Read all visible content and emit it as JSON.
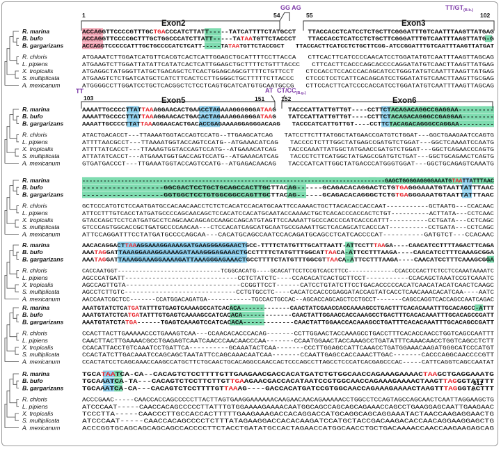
{
  "colors": {
    "green_highlight": "#7fdcb0",
    "blue_highlight": "#8fd0ee",
    "pink_highlight": "#f3a6b5",
    "stop_codon_red": "#e8262d",
    "splice_purple": "#7d3aa8",
    "text_black": "#111111"
  },
  "species": {
    "marina": "R. marina",
    "bufo": "B. bufo",
    "gargarizans": "B. gargarizans",
    "chloris": "R. chloris",
    "pipiens": "L. pipiens",
    "tropicalis": "X. tropicalis",
    "multiplicata": "S. multiplicata",
    "mexicanum": "A. mexicanum"
  },
  "labels": {
    "exon2": "Exon2",
    "exon3": "Exon3",
    "exon5": "Exon5",
    "exon6": "Exon6",
    "n1": "1",
    "n54": "54",
    "n55": "55",
    "n102": "102",
    "n103": "103",
    "n151": "151",
    "n152": "152",
    "n611": "611",
    "gg_ag": "GG AG",
    "tt_gt": "TT/GT",
    "tt_gt_sub": "(B.b.)",
    "tt": "TT",
    "at": "AT",
    "ct_cc": "CT/CC",
    "ct_cc_sub": "(B.g.)"
  },
  "blocks": [
    {
      "toad": [
        "ACCAGGTTCCCCGTTTGCTGACCCATCTTATT-----TATCATTTTCTATGCCT   TTACCACCTCATCCTCTGCTTCGGGATTTGTCAATTTAAGTTATGAG",
        "ACCAGGTTCCCCGCTTTGCTGGCCCATCTTATT-----TATAATGTTCTACCCT   TTACCACCTCATCCTCTGCTTCGGGATTTGTCAATTTAAGTTATG-G",
        "ACCAGGTCCCCCATTTGCTGCCCCATCTCATT-----TATAATGTTCTACCGCT   TTACCACTTCATCCTCTGCTTCGG-ATCCGGATTTGTCAATTTAAGTTATGAT"
      ],
      "other": [
        "ATGAAATCTTGGATCATGTTCACGTCACTCATTGGAGCTGCATTTTCCTTACCA   CTTCACTTCATCCCCAACATCCTGGATATGTCAATTTAAGTTAGCAG",
        "ATGAAGTCTTGGATTATATTCATATCACTCATTGGAGCTGCTTTTCTGTTTACCC   CTTCACTTCACCCAGCACCCCAGGATATGTCAACTTAAGTTATGAG",
        "ATGAGGCTATGGGTTATGCTGACAGCTCTCACTGGAGCAGCGTTTTCTGTTCCT   CTCCACCTCCACCCACAGCATCCTGGGTATGTCAATTTAAGTTATGAG",
        "ATGAAGTCTCTGATCATGCTCATCTTCACTCCTTGGGGCTGCTTTTTCTTACCC   CTCCCTCCTCATTCACAGCATCCTGGATATGTCAACTTAAGTTGCGAG",
        "ATGGGGCCTTGGATCCTGCTCACGGCTCTCCTCAGTGCATCATGTGCAATGCCG   CTTCCACTTCATCCCCACCATCCTGGATATGTCAATTTAAGTTAGCAG"
      ]
    },
    {
      "toad": [
        "AAAATTGCCCCTTATTAAAGGAACACTGAACCTAGAAAGGGGGGATAAG   TACCCATTATTGTTGT----CCTTCTACAGACAGGCCGAGGAA---------",
        "AAAATTGCCCCTTATTAAAGGAACACTGACACTAGAAAGGAGGGATAAG   TATCCATTATTGTTGT----CCTTCTACAGACAGGGCCGAGGAA--------",
        "AAAATTGCCCCTTATTAAAGGAACACTGACACCGAGAAAAGGAGGGACAAG   TACCCATCATTGTTGT----CCTTCTACAGACAGGGCCAGGAA---------"
      ],
      "other": [
        "ATACTGACACCT---TTAAAATGGTACCAGTCCATG--TTGAAGCATCAG   TATCCTTCTTTATGGCTATGAACCGATGTCTGGAT---GGCTGAAGAATCCAGTG",
        "ATTTTAACGCCT---TTAAAATGGTACCAGTCCATG--ATGAAACATCAG   TACCCCTCTTTGGCTATGAGCCGATGTCTGGAT---GGCTCAAAATCCAATG",
        "ATTTTATCACCT---TTAAAGTGGTACCAGTCCATG--ATGAAACATCAG   TACCCAAATTATGGCTATGAACCGATGTCTGGAT---GGCTCAGAACCCAGTG",
        "ATTATATCACCT---ATGAAATGGTGACCAGTCCATG--ATGAAACATCAG   TACCCTCTTCATGGCTATGAGCCGATGTCTGAT---GGCTGCAGAACTCAGTG",
        "GTGATGACCCT---TTGAAATGGTACCAGTCCATG--ATGAGACAACAG   TACCCATCATTGGCTATGACCCATGGGTGGAT---GGCTGCAGAGTCAAATG"
      ]
    },
    {
      "toad": [
        "--------------------------------------------------------------------------------------GAGCTGGGGAGGGGAAATGTAATTATTTAAC",
        "-------------------GGCGACTCCTGCTGCAGCCACTTGCTTACAG------GCAGACACAGGACTCTGTGAGGGAAATGTAATTATTTAAC",
        "-------------------GGTGGCTCCTGTGGCGGCCAGTTGCTTACAG------GCAGACACAGGGCTCTGTGAGGGAAATGTAATTATTTAAC"
      ],
      "other": [
        "GCTCCCATGTCTCCAATGATGCCACAACAACCTCTCTCACATCCACATGCAATTCCAAAACTGCTTACACACCACCAAT-----------GCTAATG---CCACAAC",
        "ATTCCTTTGTCACCTATGATGCCCCAGCAACAGCTCCACATCCACATGCAATACCAAAACTGCTCACACCCACCACTCTGT----------ACTTATA---CCTCAAC",
        "GTACCAGCTCCTCATGATGCCTCAGCAACAGCACCAAGCCAGCATGTAGTTCCAAAATTGCCCACCCCATCACCCATTT----------CCTGATA---CCTCAGC",
        "GTCCCAGTGGCACCGCTGATGCCCCAACAA---CTCCACATCAGCATGCAATGCCGAAATTGCTCACAGCATCACCCAT----------CCTGATA---CCTCAGC",
        "ATTCCAGGATTTCCTATGATGCCCCAGCAA---CACATGCAGCCAATCCACAGATGCAGCCTCATCACCCCAT----------GATGTCT---CCACAAC"
      ]
    },
    {
      "toad": [
        "AACACAGGACTTAAAGGAAAGGAAAAGATGAAGGGAGGAACTGCC-TTTTCTATGTTTGCATTAATT-ATTCCTTTAAGA----CAACATCCTTTTAGACTTCAGA",
        "AAATAGGATTAAAGGAAAGGAAAAGATAAAGGGAGAAACTGCCTTTTCTATGTTTGGCATTAACA-ATTCCTTTAAGA----CAACATCCTTTCAAAGCGGA",
        "AAATAGGATTAAAGGAAAGGAAAAGATTAAAGGGAGAAACTGCCTTTTCTATGTTTGGCGTTAACA-ATTCCTTTAAGA----CAACATCCTTTCAAAGCGGA"
      ],
      "other": [
        "CACCAATGGT-----------------------------TCGGCACATG----GCACATTCCTCCGTCACCTTCC-------------CCACCCCACTTCTCCTCCAAATAAAATC",
        "AGCCCATGATT-----------------------------CCTCTATCTC----CCACACATCACTGCTTCCT-----------CCACAGCTAAATCCGTCAAATC",
        "AGCCAGTTGTA-----------------------------CCGGTTCCT------CATCCTGTATCTTCCTGACACCCCCACATCAACATACATCAACTCAAGC",
        "AGCCTCTTGTC-----------------------------CCTGTGCCTC----CACATCCACCCGAGGATACCAGTATCACCTCAACAAACACATCAA----AATC",
        "AACCAATCGCTCC-------CCATGGACAGATGA------------TGCCACTGCCAC--AGCACCAGCAGCTCCTGCCT-------CAGCCAGGTCACCAGCCAATCAGAC"
      ]
    },
    {
      "toad": [
        "AAATGTATCTCATGATATTTGTGAGTCAAAAGCCATCACACA-------------CAACTATCGAACCACCAAAAGCCTGACTTTCACACAAATTTGCACAGCC-ATTT",
        "AAATGTATCTCATGATATTTGTGAGTCAAAAGCCATCACACA-------------CAACTATTGGAACCACCAAAGCCTGACTTTCACACAAATTTGCACAGCCGATT",
        "AAATGTATCTATGA------TGAGTCAAAGTCCATCACACA-------------CAACTATTGGAACCACAAAGCCTGATTTCACACAAATTTGCACAGCCGATT"
      ],
      "other": [
        "CCACTTACTTGAAAAACCCTGAAAGTCAA---CCAACACACCCACAG-------CCTTGGAACTACCAAAGCCTGACCTTTCACACCAACCTGGTCAGCCAATTT",
        "CAACTTACTTGAAAACGCCTGAGAGTCAATCAACCCAACAACCCAA-------CCAATGGAACTACCAAAGCCTGATATTTCAAACAACCTGGTCAGCCTCTT",
        "CCACATTACCTGTCAAATCCTGATTCA----------GCAAATACTCAA-------CCCTTGGAGCCATTCAAACCTGATGGAAACAAGATGGGCATCCCATGT",
        "CCACTATCTTGACAAATCCAGCAGCTAATATTCCAGCAAACAATCAA-------CCAATTGAGCCACCAAACTTGAC-------CACCCAGGCAACCCCGTT",
        "CCACTATCCTCAGCAAACCAAGCCATGCTTCTGCAACTGCACAGGCCAACCACTCCCAGCCTTAGCCTCCCATCACGAGCCCAC-----CATTCAGGTCAGCCAATAT"
      ]
    },
    {
      "toad": [
        "TGCATAATCA-CA--CACAGTCTCCTTTTGTTGAAGAACGACCACATGATCTGTGGCAACCAGAAAGAAAACTAAGCTGAGGAAATG",
        "TGCAAATCA-TA---CACAGTCTCCTTCTTGTTGAAGAACGACCACATAATCCGTGGCAACCAGAAAGAAAACTAAGTTAGGGTATTTT",
        "TGCAAATCA-CA---CACAGTCTCCTTTTGTTAAAG----GACCACATGATCCGTGGCAACCAGAAAGAAAACTAAGTTTAGGGTACTTT"
      ],
      "other": [
        "ACCCGAAC-----CAACCACCAGCCCCCTTACTTAGTGAAGGAAAAAACAAGAACAACAGAAAAACCTGGCCTCCAGTAGCCAGCAACTCAATTAGGAAGCTG",
        "ATCCCAAT-----CAACCACAGCCCCCTTATTTGTGGAAAAGAAAACAATGGCAGCCAGCAGCAGAAACCAGCCTGAAGGAGCAATTGAAGAAC",
        "TCCCTTA-----CAACCCTTGCCACCACTTTTTGAAGAAAGACCACAGGACCATGCAGGCAGCAGGAAATACTAACCAAGAGGAACTG",
        "ATCCCAAT-----CAACCACAGCCCCTCTTTATAGAAGGACCACACAAGATCCATGCTACCGACAAGACACCAACAGGAAGGAGCTG",
        "ACCCGGTGCAGCAGCAGCAGCCACCCCTTCTACCTGATATGCCACTAGAACCATGGCAACCTGCTGACAAAACCAACCAAGAAGAGCAG"
      ]
    }
  ]
}
